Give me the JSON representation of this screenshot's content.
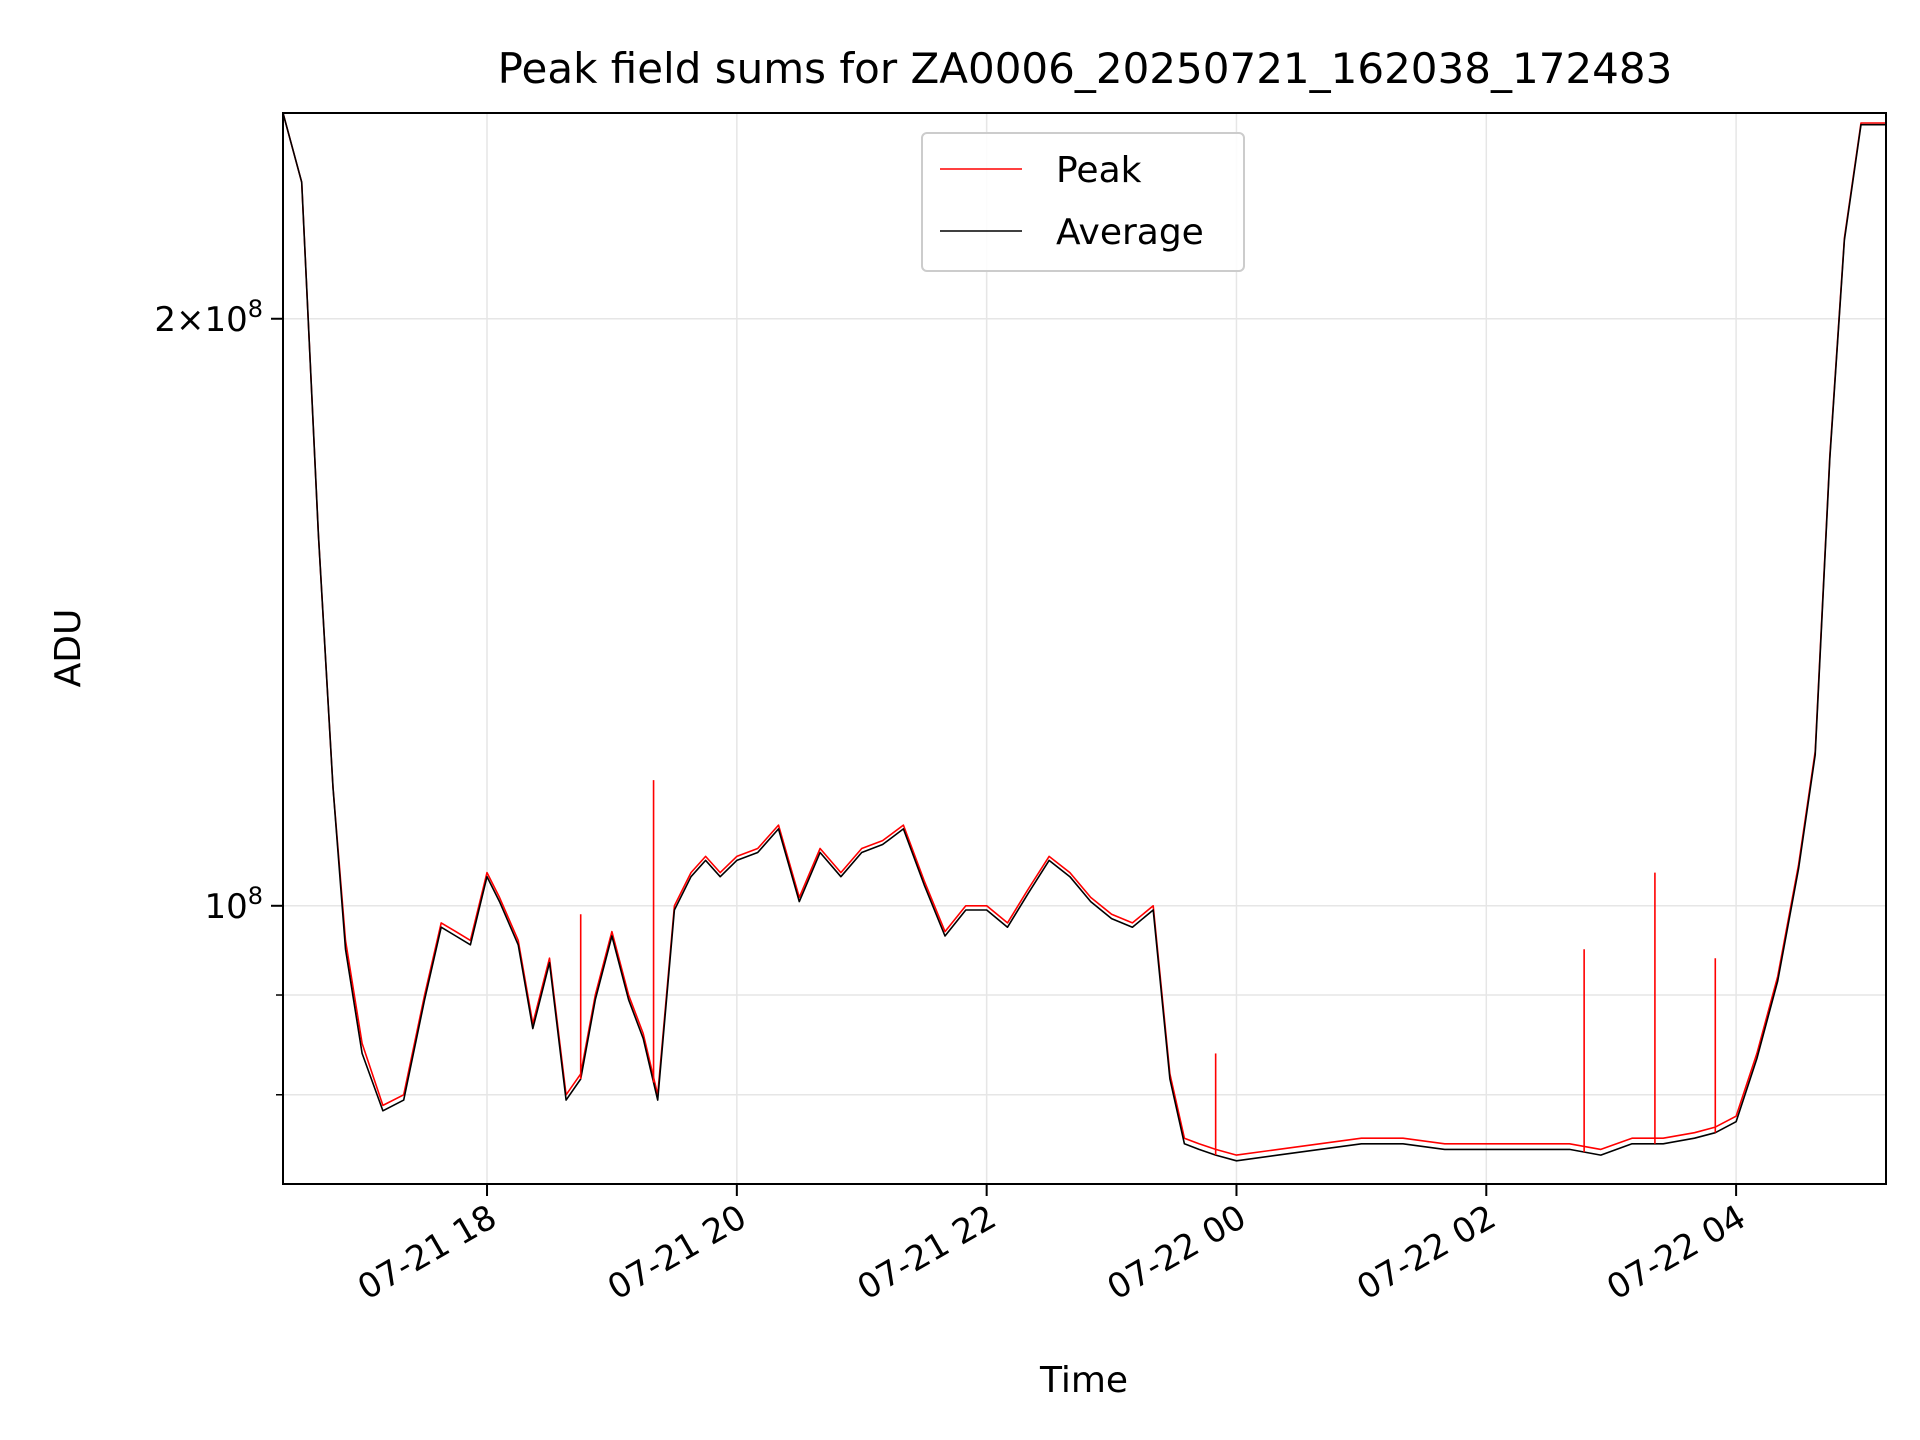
{
  "chart_data": {
    "type": "line",
    "title": "Peak field sums for ZA0006_20250721_162038_172483",
    "xlabel": "Time",
    "ylabel": "ADU",
    "y_scale": "log",
    "xlim": [
      "2025-07-21 16:22",
      "2025-07-22 05:12"
    ],
    "ylim": [
      72000000,
      255000000
    ],
    "x_ticks": [
      "07-21 18",
      "07-21 20",
      "07-21 22",
      "07-22 00",
      "07-22 02",
      "07-22 04"
    ],
    "y_ticks": [
      {
        "value": 200000000,
        "mantissa": "2",
        "base": "10",
        "exp": "8"
      },
      {
        "value": 100000000,
        "mantissa": "",
        "base": "10",
        "exp": "8"
      }
    ],
    "y_minor_ticks": [
      90000000,
      80000000
    ],
    "grid": true,
    "legend": {
      "placement": "top-center",
      "entries": [
        "Peak",
        "Average"
      ]
    },
    "colors": {
      "Peak": "#ff0000",
      "Average": "#000000",
      "grid": "#e6e6e6"
    },
    "x": [
      "2025-07-21 16:22",
      "2025-07-21 16:31",
      "2025-07-21 16:39",
      "2025-07-21 16:46",
      "2025-07-21 16:52",
      "2025-07-21 17:00",
      "2025-07-21 17:10",
      "2025-07-21 17:20",
      "2025-07-21 17:30",
      "2025-07-21 17:38",
      "2025-07-21 17:45",
      "2025-07-21 17:52",
      "2025-07-21 18:00",
      "2025-07-21 18:06",
      "2025-07-21 18:15",
      "2025-07-21 18:22",
      "2025-07-21 18:30",
      "2025-07-21 18:38",
      "2025-07-21 18:45",
      "2025-07-21 18:52",
      "2025-07-21 19:00",
      "2025-07-21 19:08",
      "2025-07-21 19:15",
      "2025-07-21 19:22",
      "2025-07-21 19:30",
      "2025-07-21 19:38",
      "2025-07-21 19:45",
      "2025-07-21 19:52",
      "2025-07-21 20:00",
      "2025-07-21 20:10",
      "2025-07-21 20:20",
      "2025-07-21 20:30",
      "2025-07-21 20:40",
      "2025-07-21 20:50",
      "2025-07-21 21:00",
      "2025-07-21 21:10",
      "2025-07-21 21:20",
      "2025-07-21 21:30",
      "2025-07-21 21:40",
      "2025-07-21 21:50",
      "2025-07-21 22:00",
      "2025-07-21 22:10",
      "2025-07-21 22:20",
      "2025-07-21 22:30",
      "2025-07-21 22:40",
      "2025-07-21 22:50",
      "2025-07-21 23:00",
      "2025-07-21 23:10",
      "2025-07-21 23:20",
      "2025-07-21 23:28",
      "2025-07-21 23:35",
      "2025-07-21 23:42",
      "2025-07-21 23:50",
      "2025-07-22 00:00",
      "2025-07-22 00:20",
      "2025-07-22 00:40",
      "2025-07-22 01:00",
      "2025-07-22 01:20",
      "2025-07-22 01:40",
      "2025-07-22 02:00",
      "2025-07-22 02:20",
      "2025-07-22 02:40",
      "2025-07-22 02:55",
      "2025-07-22 03:10",
      "2025-07-22 03:25",
      "2025-07-22 03:40",
      "2025-07-22 03:50",
      "2025-07-22 04:00",
      "2025-07-22 04:10",
      "2025-07-22 04:20",
      "2025-07-22 04:30",
      "2025-07-22 04:38",
      "2025-07-22 04:45",
      "2025-07-22 04:52",
      "2025-07-22 05:00",
      "2025-07-22 05:12"
    ],
    "series": [
      {
        "name": "Peak",
        "values": [
          255000000,
          235000000,
          155000000,
          115000000,
          96000000,
          85000000,
          79000000,
          80000000,
          90000000,
          98000000,
          97000000,
          96000000,
          104000000,
          101000000,
          96000000,
          87000000,
          94000000,
          80000000,
          82000000,
          90000000,
          97000000,
          90000000,
          86000000,
          80000000,
          100000000,
          104000000,
          106000000,
          104000000,
          106000000,
          107000000,
          110000000,
          101000000,
          107000000,
          104000000,
          107000000,
          108000000,
          110000000,
          103000000,
          97000000,
          100000000,
          100000000,
          98000000,
          102000000,
          106000000,
          104000000,
          101000000,
          99000000,
          98000000,
          100000000,
          82000000,
          76000000,
          75500000,
          75000000,
          74500000,
          75000000,
          75500000,
          76000000,
          76000000,
          75500000,
          75500000,
          75500000,
          75500000,
          75000000,
          76000000,
          76000000,
          76500000,
          77000000,
          78000000,
          84000000,
          92000000,
          105000000,
          120000000,
          170000000,
          220000000,
          252000000,
          252000000
        ]
      },
      {
        "name": "Average",
        "values": [
          255000000,
          235000000,
          155000000,
          115000000,
          95000000,
          84000000,
          78500000,
          79500000,
          89500000,
          97500000,
          96500000,
          95500000,
          103500000,
          100500000,
          95500000,
          86500000,
          93500000,
          79500000,
          81500000,
          89500000,
          96500000,
          89500000,
          85500000,
          79500000,
          99500000,
          103500000,
          105500000,
          103500000,
          105500000,
          106500000,
          109500000,
          100500000,
          106500000,
          103500000,
          106500000,
          107500000,
          109500000,
          102500000,
          96500000,
          99500000,
          99500000,
          97500000,
          101500000,
          105500000,
          103500000,
          100500000,
          98500000,
          97500000,
          99500000,
          81500000,
          75500000,
          75000000,
          74500000,
          74000000,
          74500000,
          75000000,
          75500000,
          75500000,
          75000000,
          75000000,
          75000000,
          75000000,
          74500000,
          75500000,
          75500000,
          76000000,
          76500000,
          77500000,
          83500000,
          91500000,
          104500000,
          119500000,
          169500000,
          219500000,
          251500000,
          251500000
        ]
      }
    ],
    "peak_spikes": [
      {
        "x": "2025-07-21 19:20",
        "y": 116000000
      },
      {
        "x": "2025-07-21 18:45",
        "y": 99000000
      },
      {
        "x": "2025-07-21 23:50",
        "y": 84000000
      },
      {
        "x": "2025-07-22 02:47",
        "y": 95000000
      },
      {
        "x": "2025-07-22 03:21",
        "y": 104000000
      },
      {
        "x": "2025-07-22 03:50",
        "y": 94000000
      }
    ]
  }
}
